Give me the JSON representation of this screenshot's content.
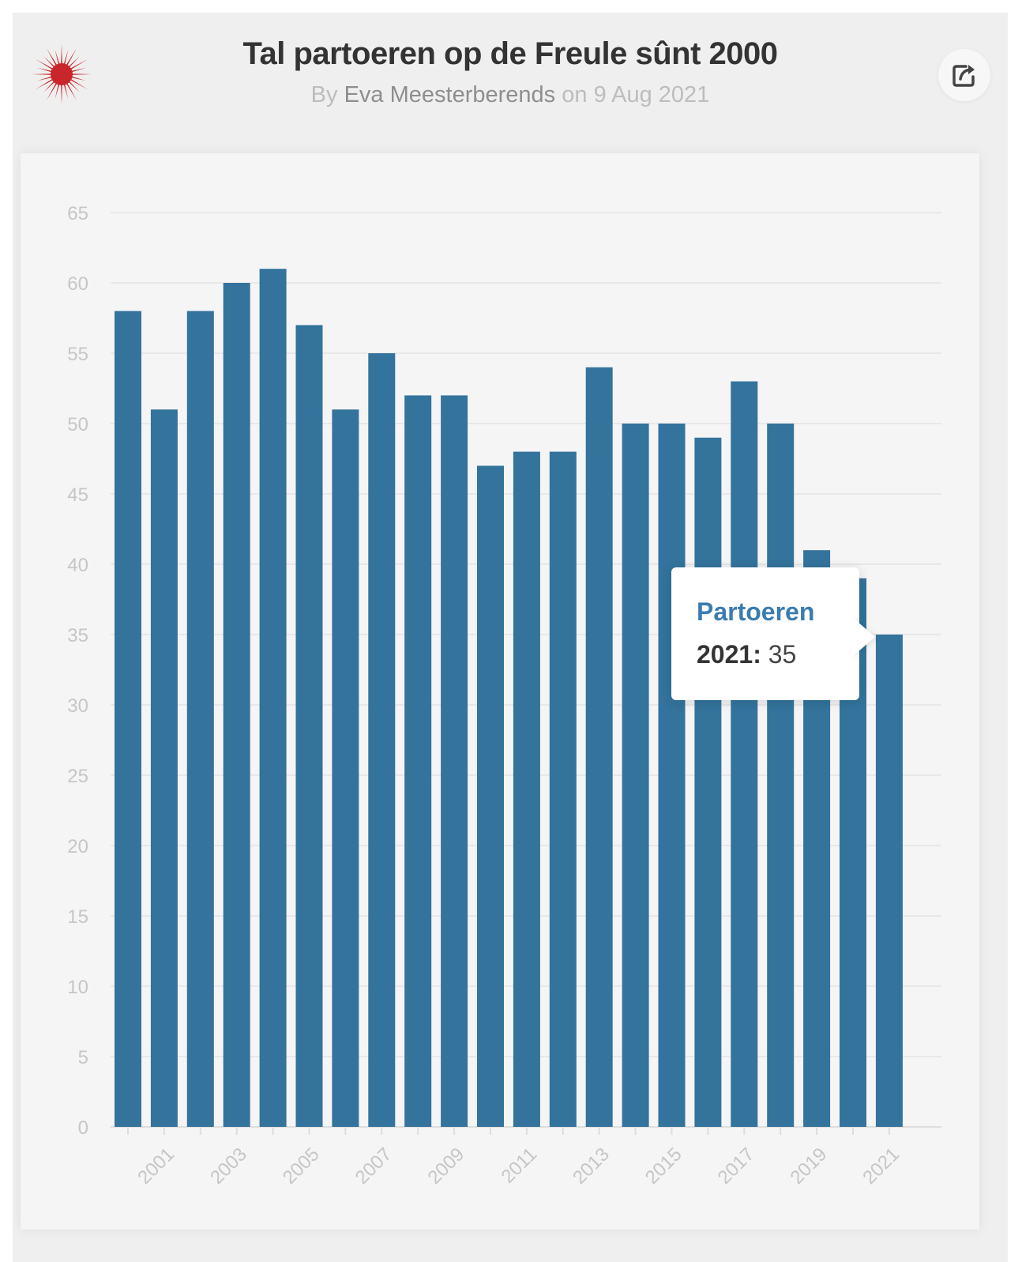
{
  "header": {
    "title": "Tal partoeren op de Freule sûnt 2000",
    "byline_prefix": "By",
    "author": "Eva Meesterberends",
    "byline_middle": "on",
    "date": "9 Aug 2021"
  },
  "icons": {
    "logo": "red-sunburst-icon",
    "share": "share-icon"
  },
  "colors": {
    "bar": "#33739c",
    "logo": "#c8262b",
    "tooltip_series": "#3a7cb0"
  },
  "tooltip": {
    "series": "Partoeren",
    "year": "2021",
    "value": "35"
  },
  "chart_data": {
    "type": "bar",
    "title": "Tal partoeren op de Freule sûnt 2000",
    "xlabel": "",
    "ylabel": "",
    "ylim": [
      0,
      65
    ],
    "yticks": [
      0,
      5,
      10,
      15,
      20,
      25,
      30,
      35,
      40,
      45,
      50,
      55,
      60,
      65
    ],
    "categories": [
      "2000",
      "2001",
      "2002",
      "2003",
      "2004",
      "2005",
      "2006",
      "2007",
      "2008",
      "2009",
      "2010",
      "2011",
      "2012",
      "2013",
      "2014",
      "2015",
      "2016",
      "2017",
      "2018",
      "2019",
      "2020",
      "2021"
    ],
    "xtick_labels": [
      "2001",
      "2003",
      "2005",
      "2007",
      "2009",
      "2011",
      "2013",
      "2015",
      "2017",
      "2019",
      "2021"
    ],
    "series": [
      {
        "name": "Partoeren",
        "values": [
          58,
          51,
          58,
          60,
          61,
          57,
          51,
          55,
          52,
          52,
          47,
          48,
          48,
          54,
          50,
          50,
          49,
          53,
          50,
          41,
          39,
          35
        ]
      }
    ],
    "grid": true,
    "legend": "none"
  }
}
